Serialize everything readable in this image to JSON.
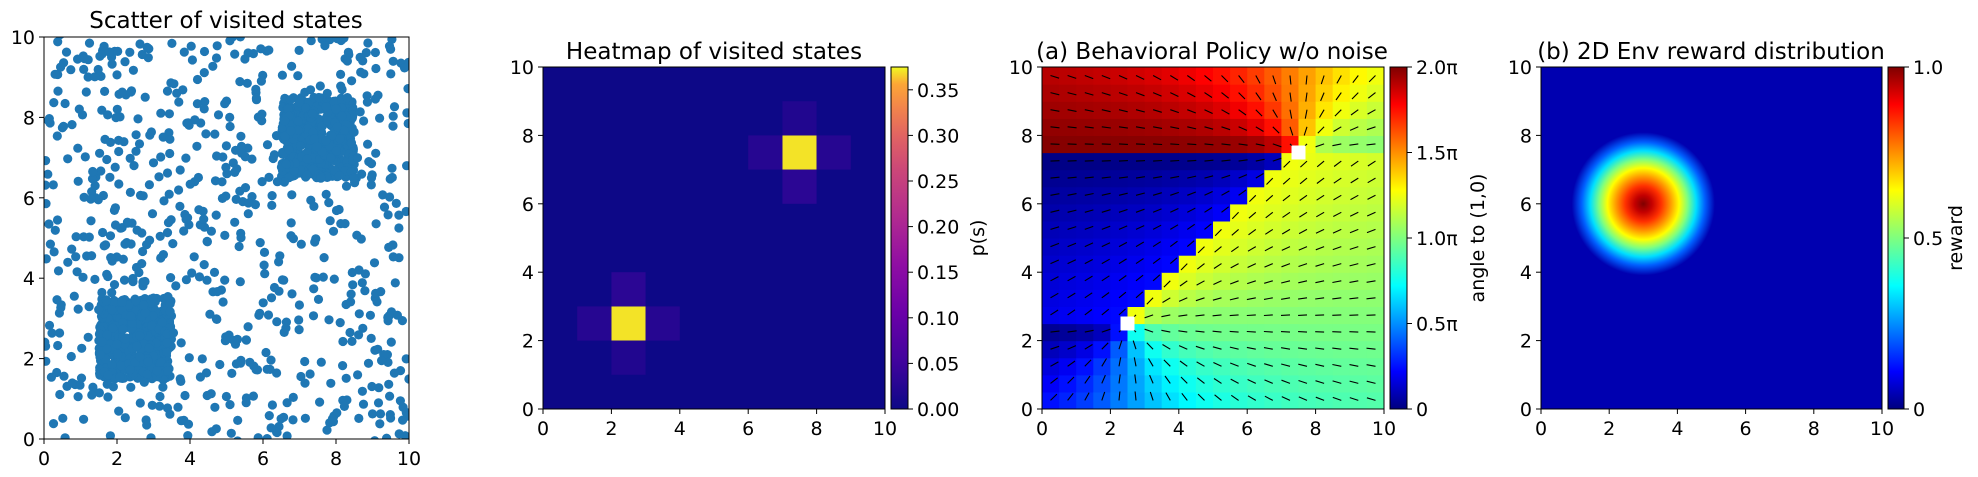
{
  "chart_data": [
    {
      "type": "scatter",
      "title": "Scatter of visited states",
      "xlim": [
        0,
        10
      ],
      "ylim": [
        0,
        10
      ],
      "x_ticks": [
        "0",
        "2",
        "4",
        "6",
        "8",
        "10"
      ],
      "y_ticks": [
        "0",
        "2",
        "4",
        "6",
        "8",
        "10"
      ],
      "color": "#1f77b4",
      "clusters": [
        {
          "x_range": [
            1.5,
            3.5
          ],
          "y_range": [
            1.5,
            3.5
          ],
          "density": "very high"
        },
        {
          "x_range": [
            6.5,
            8.5
          ],
          "y_range": [
            6.5,
            8.5
          ],
          "density": "very high"
        },
        {
          "x_range": [
            0,
            10
          ],
          "y_range": [
            0,
            10
          ],
          "density": "sparse background"
        }
      ]
    },
    {
      "type": "heatmap",
      "title": "Heatmap of visited states",
      "xlim": [
        0,
        10
      ],
      "ylim": [
        0,
        10
      ],
      "x_ticks": [
        "0",
        "2",
        "4",
        "6",
        "8",
        "10"
      ],
      "y_ticks": [
        "0",
        "2",
        "4",
        "6",
        "8",
        "10"
      ],
      "grid_size": 10,
      "cells": [
        {
          "x": [
            2,
            3
          ],
          "y": [
            2,
            3
          ],
          "value": 0.37
        },
        {
          "x": [
            7,
            8
          ],
          "y": [
            7,
            8
          ],
          "value": 0.37
        },
        {
          "x": [
            2,
            3
          ],
          "y": [
            3,
            4
          ],
          "value": 0.03
        },
        {
          "x": [
            1,
            2
          ],
          "y": [
            2,
            3
          ],
          "value": 0.025
        },
        {
          "x": [
            3,
            4
          ],
          "y": [
            2,
            3
          ],
          "value": 0.025
        },
        {
          "x": [
            2,
            3
          ],
          "y": [
            1,
            2
          ],
          "value": 0.02
        },
        {
          "x": [
            7,
            8
          ],
          "y": [
            6,
            7
          ],
          "value": 0.03
        },
        {
          "x": [
            6,
            7
          ],
          "y": [
            7,
            8
          ],
          "value": 0.025
        },
        {
          "x": [
            8,
            9
          ],
          "y": [
            7,
            8
          ],
          "value": 0.025
        },
        {
          "x": [
            7,
            8
          ],
          "y": [
            8,
            9
          ],
          "value": 0.02
        }
      ],
      "background_value": 0.0,
      "colorbar": {
        "label": "p(s)",
        "range": [
          0,
          0.375
        ],
        "ticks": [
          "0.00",
          "0.05",
          "0.10",
          "0.15",
          "0.20",
          "0.25",
          "0.30",
          "0.35"
        ],
        "colormap": "plasma"
      }
    },
    {
      "type": "heatmap",
      "title": "(a) Behavioral Policy w/o noise",
      "xlim": [
        0,
        10
      ],
      "ylim": [
        0,
        10
      ],
      "x_ticks": [
        "0",
        "2",
        "4",
        "6",
        "8",
        "10"
      ],
      "y_ticks": [
        "0",
        "2",
        "4",
        "6",
        "8",
        "10"
      ],
      "description_of_field": "angle of action vector to (1,0); arrows attracted toward points (2.5, 2.5) and (7.5, 7.5)",
      "attractors": [
        [
          2.5,
          2.5
        ],
        [
          7.5,
          7.5
        ]
      ],
      "colorbar": {
        "label": "angle to (1,0)",
        "range": [
          0,
          2
        ],
        "ticks": [
          "0",
          "0.5π",
          "1.0π",
          "1.5π",
          "2.0π"
        ],
        "colormap": "jet"
      }
    },
    {
      "type": "heatmap",
      "title": "(b) 2D Env reward distribution",
      "xlim": [
        0,
        10
      ],
      "ylim": [
        0,
        10
      ],
      "x_ticks": [
        "0",
        "2",
        "4",
        "6",
        "8",
        "10"
      ],
      "y_ticks": [
        "0",
        "2",
        "4",
        "6",
        "8",
        "10"
      ],
      "reward_peak": [
        3,
        6
      ],
      "reward_radius": 2.0,
      "colorbar": {
        "label": "reward",
        "range": [
          0,
          1
        ],
        "ticks": [
          "0",
          "0.5",
          "1.0"
        ],
        "colormap": "jet"
      }
    }
  ]
}
